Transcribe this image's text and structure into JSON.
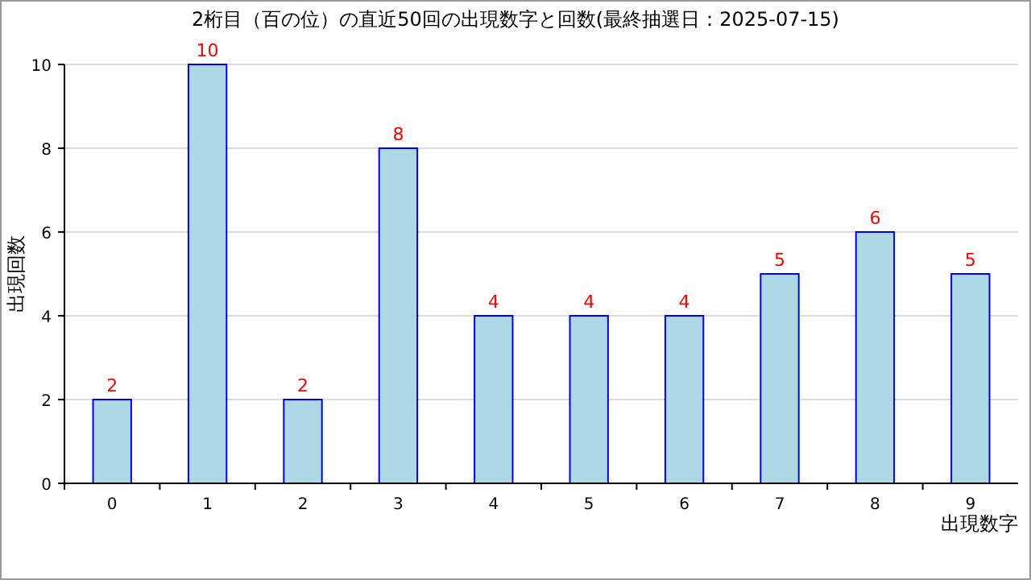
{
  "chart_data": {
    "type": "bar",
    "title": "2桁目（百の位）の直近50回の出現数字と回数(最終抽選日：2025-07-15)",
    "xlabel": "出現数字",
    "ylabel": "出現回数",
    "categories": [
      "0",
      "1",
      "2",
      "3",
      "4",
      "5",
      "6",
      "7",
      "8",
      "9"
    ],
    "values": [
      2,
      10,
      2,
      8,
      4,
      4,
      4,
      5,
      6,
      5
    ],
    "color": "#add8e6",
    "ylim": [
      0,
      10
    ],
    "yticks": [
      0,
      2,
      4,
      6,
      8,
      10
    ],
    "grid": "y",
    "data_labels": true
  }
}
